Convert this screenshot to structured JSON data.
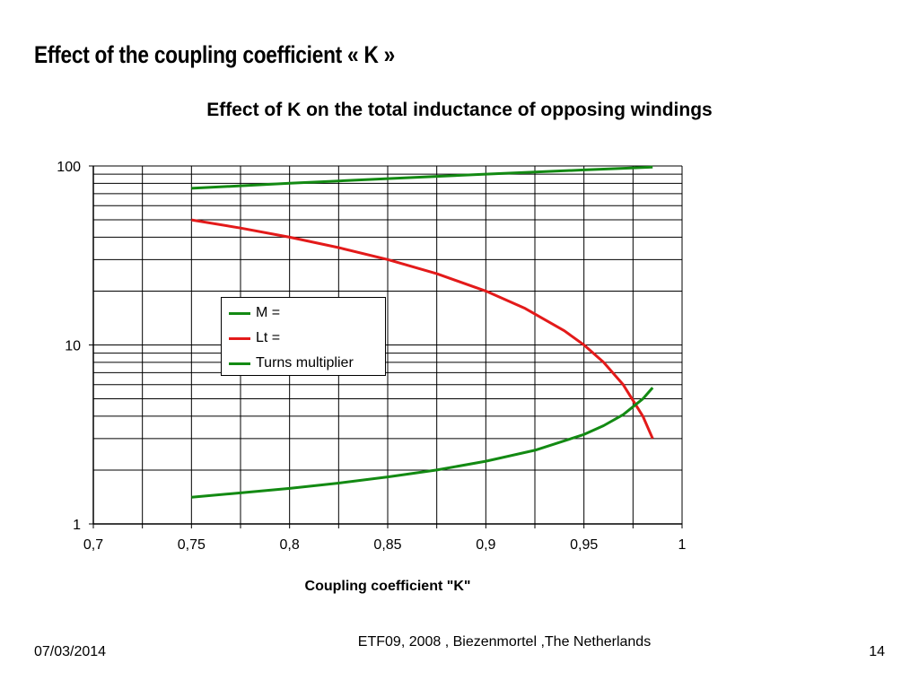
{
  "slide": {
    "title": "Effect of the coupling coefficient « K »",
    "footer_date": "07/03/2014",
    "footer_center": "ETF09, 2008 , Biezenmortel ,The Netherlands",
    "footer_page": "14"
  },
  "colors": {
    "green": "#138a13",
    "red": "#e31a1a",
    "grid": "#000000"
  },
  "chart_data": {
    "type": "line",
    "title": "Effect of K on the total inductance of opposing windings",
    "xlabel": "Coupling coefficient \"K\"",
    "ylabel": "",
    "xlim": [
      0.7,
      1
    ],
    "ylim": [
      1,
      100
    ],
    "yscale": "log",
    "grid": true,
    "legend": "inside-center",
    "x_ticks": [
      "0,7",
      "0,75",
      "0,8",
      "0,85",
      "0,9",
      "0,95",
      "1"
    ],
    "y_ticks": [
      "1",
      "10",
      "100"
    ],
    "series": [
      {
        "name": "M =",
        "color": "green",
        "x": [
          0.75,
          0.775,
          0.8,
          0.825,
          0.85,
          0.875,
          0.9,
          0.925,
          0.95,
          0.97,
          0.985
        ],
        "y": [
          75,
          77.5,
          80,
          82.5,
          85,
          87.5,
          90,
          92.5,
          95,
          97,
          98.5
        ]
      },
      {
        "name": "Lt =",
        "color": "red",
        "x": [
          0.75,
          0.775,
          0.8,
          0.825,
          0.85,
          0.875,
          0.9,
          0.92,
          0.94,
          0.95,
          0.96,
          0.97,
          0.98,
          0.985
        ],
        "y": [
          50,
          45,
          40,
          35,
          30,
          25,
          20,
          16,
          12,
          10,
          8,
          6,
          4,
          3
        ]
      },
      {
        "name": "Turns multiplier",
        "color": "green",
        "x": [
          0.75,
          0.775,
          0.8,
          0.825,
          0.85,
          0.875,
          0.9,
          0.925,
          0.95,
          0.96,
          0.97,
          0.98,
          0.985
        ],
        "y": [
          1.41,
          1.49,
          1.58,
          1.69,
          1.83,
          2.0,
          2.24,
          2.58,
          3.16,
          3.54,
          4.08,
          5.0,
          5.77
        ]
      }
    ]
  }
}
